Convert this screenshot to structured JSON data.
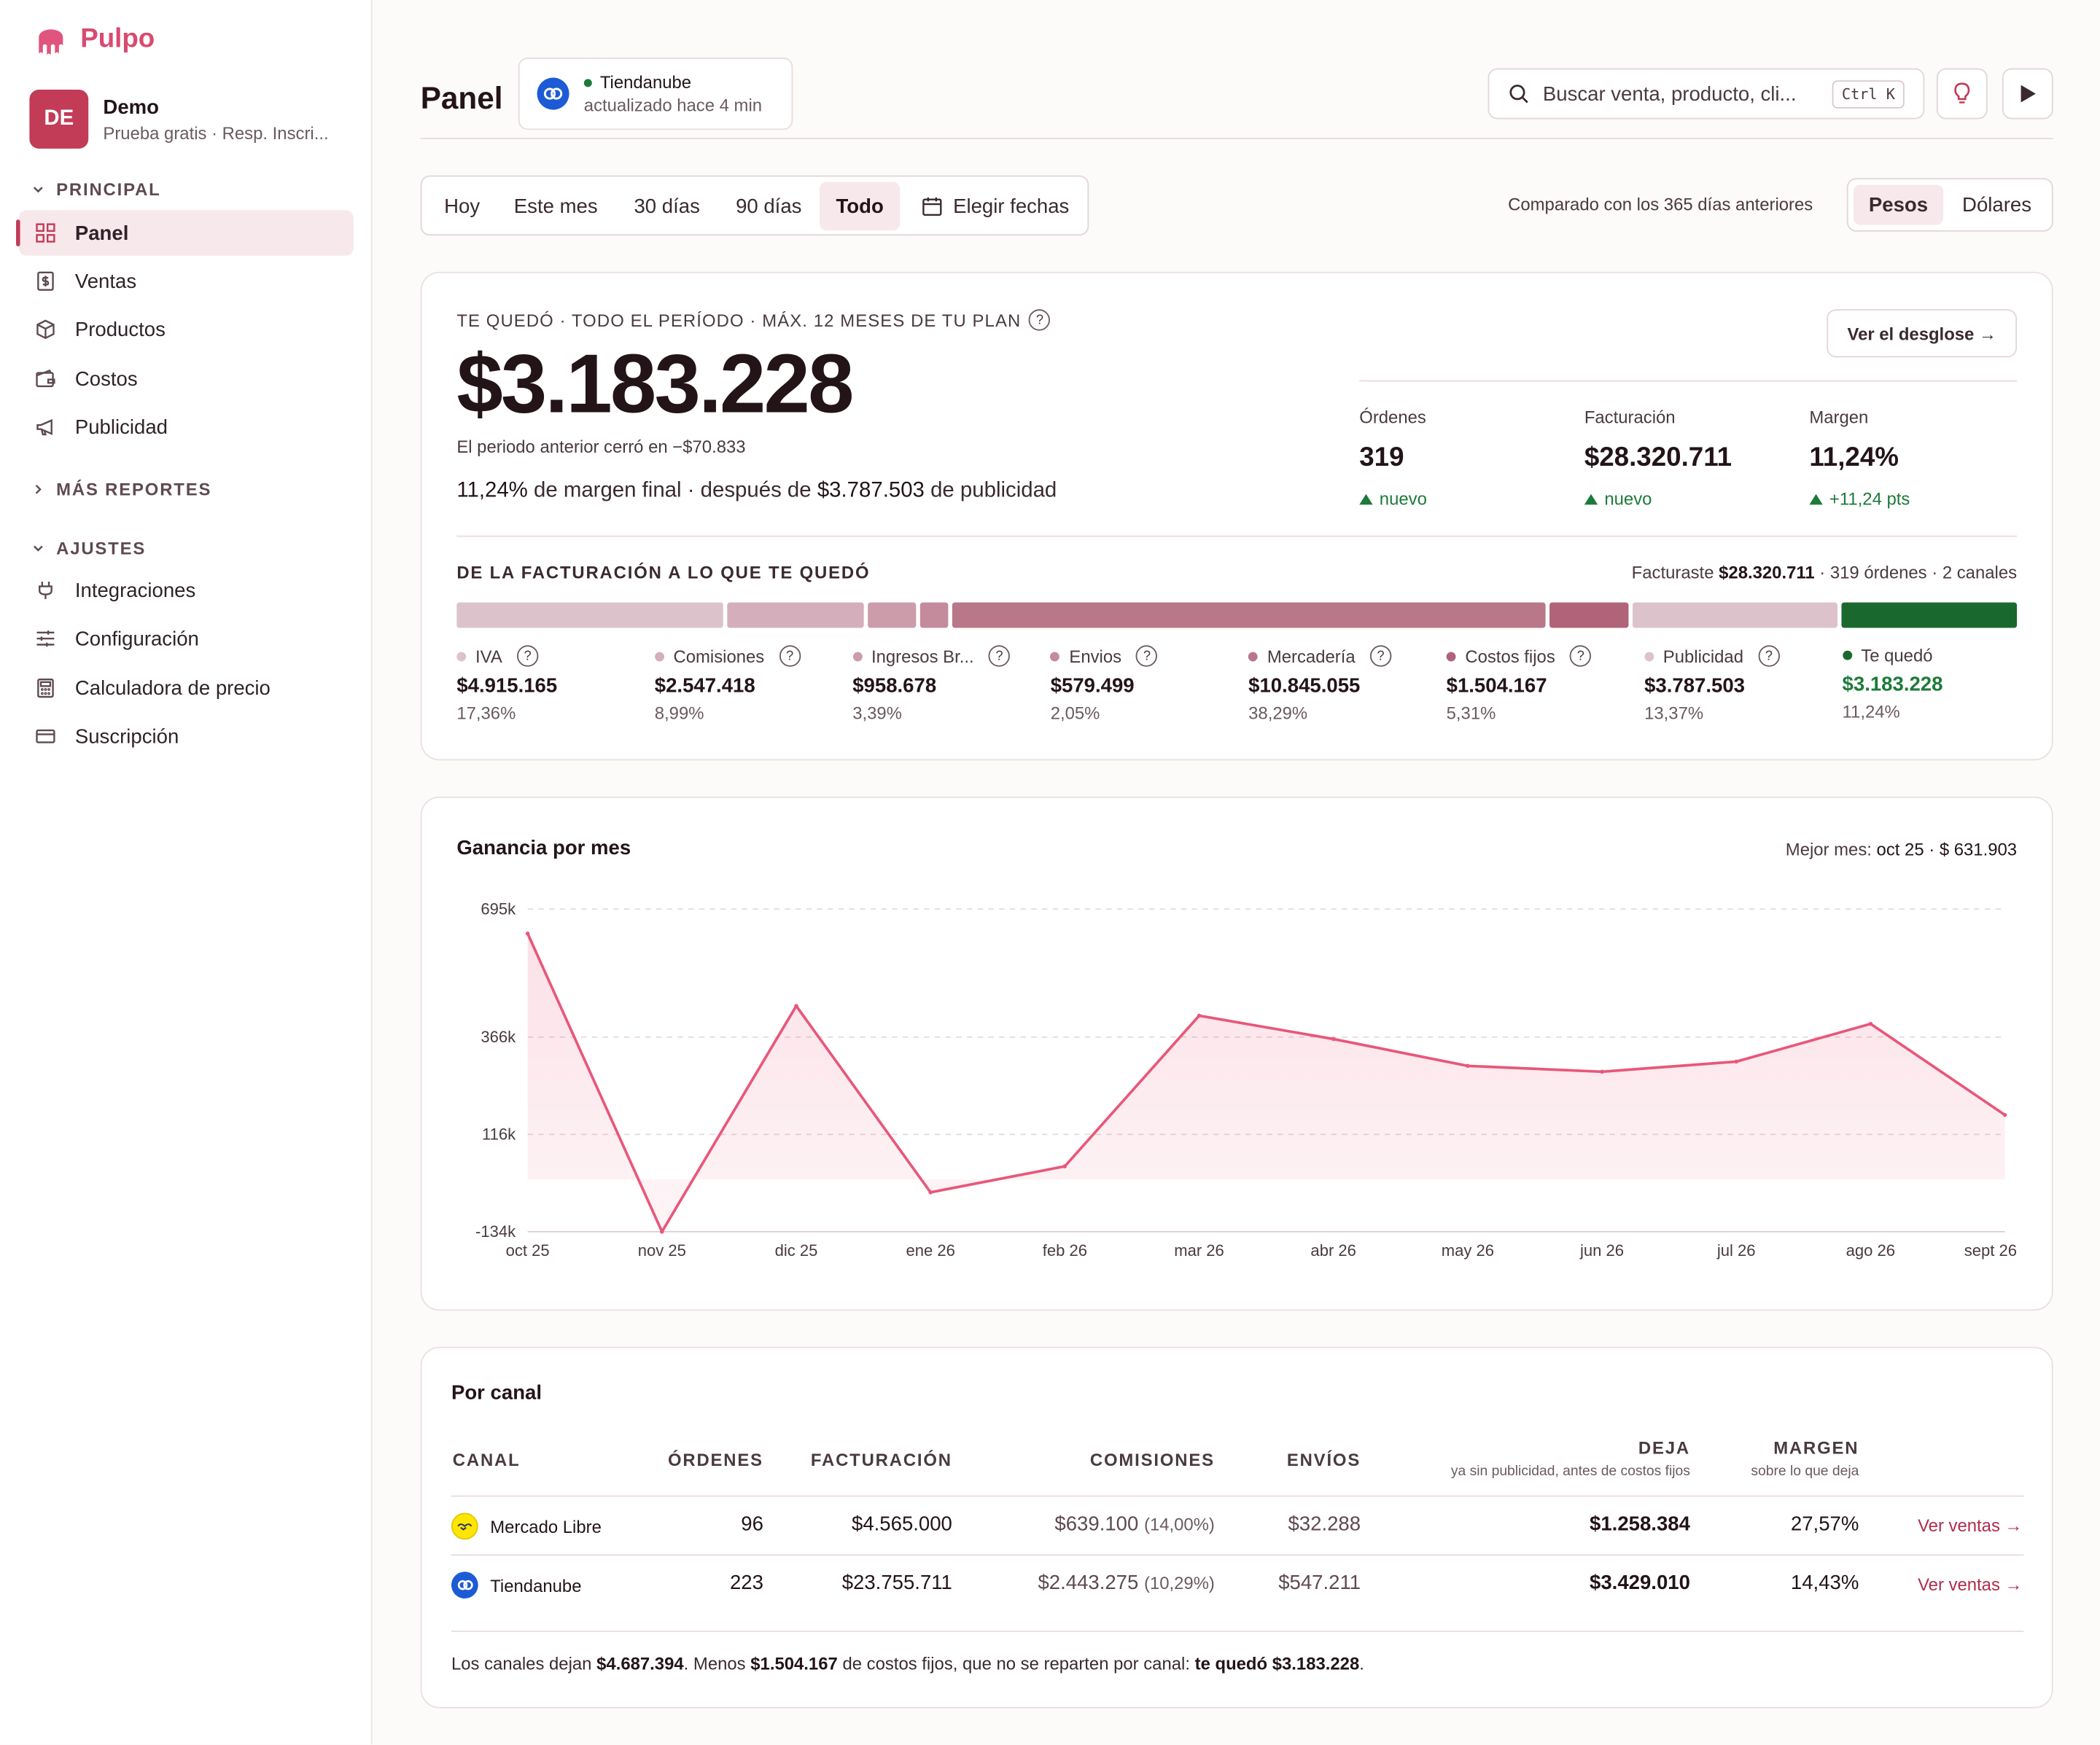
{
  "brand": {
    "name": "Pulpo",
    "color": "#d94a71"
  },
  "account": {
    "initials": "DE",
    "name": "Demo",
    "subtitle": "Prueba gratis · Resp. Inscri..."
  },
  "sidebar": {
    "principal_label": "PRINCIPAL",
    "principal_items": [
      {
        "label": "Panel",
        "icon": "grid-icon",
        "active": true
      },
      {
        "label": "Ventas",
        "icon": "receipt-icon"
      },
      {
        "label": "Productos",
        "icon": "box-icon"
      },
      {
        "label": "Costos",
        "icon": "wallet-icon"
      },
      {
        "label": "Publicidad",
        "icon": "megaphone-icon"
      }
    ],
    "reports_label": "MÁS REPORTES",
    "ajustes_label": "AJUSTES",
    "ajustes_items": [
      {
        "label": "Integraciones",
        "icon": "plug-icon"
      },
      {
        "label": "Configuración",
        "icon": "sliders-icon"
      },
      {
        "label": "Calculadora de precio",
        "icon": "calculator-icon"
      },
      {
        "label": "Suscripción",
        "icon": "card-icon"
      }
    ]
  },
  "header": {
    "title": "Panel",
    "store": {
      "name": "Tiendanube",
      "status": "actualizado hace 4 min"
    },
    "search": {
      "placeholder": "Buscar venta, producto, cli...",
      "shortcut": "Ctrl K"
    }
  },
  "range_tabs": [
    "Hoy",
    "Este mes",
    "30 días",
    "90 días",
    "Todo"
  ],
  "range_active": "Todo",
  "choose_dates": "Elegir fechas",
  "compare_text": "Comparado con los 365 días anteriores",
  "currency_tabs": [
    "Pesos",
    "Dólares"
  ],
  "currency_active": "Pesos",
  "summary": {
    "overline": "TE QUEDÓ · TODO EL PERÍODO · MÁX. 12 MESES DE TU PLAN",
    "total": "$3.183.228",
    "previous": "El periodo anterior cerró en −$70.833",
    "margin_pct": "11,24%",
    "margin_mid": "de margen final · después de",
    "ads_amount": "$3.787.503",
    "margin_tail": "de publicidad",
    "breakdown_button": "Ver el desglose →",
    "kpis": [
      {
        "label": "Órdenes",
        "value": "319",
        "delta": "nuevo"
      },
      {
        "label": "Facturación",
        "value": "$28.320.711",
        "delta": "nuevo"
      },
      {
        "label": "Margen",
        "value": "11,24%",
        "delta": "+11,24 pts"
      }
    ],
    "bar_heading": "DE LA FACTURACIÓN A LO QUE TE QUEDÓ",
    "bar_summary_prefix": "Facturaste",
    "bar_summary_amount": "$28.320.711",
    "bar_summary_suffix": "· 319 órdenes · 2 canales",
    "segments": [
      {
        "label": "IVA",
        "value": "$4.915.165",
        "pct": "17,36%",
        "share": 17.36,
        "color": "#dcc3cb"
      },
      {
        "label": "Comisiones",
        "value": "$2.547.418",
        "pct": "8,99%",
        "share": 8.99,
        "color": "#d4afbb"
      },
      {
        "label": "Ingresos Br...",
        "value": "$958.678",
        "pct": "3,39%",
        "share": 3.39,
        "color": "#cc9cab"
      },
      {
        "label": "Envios",
        "value": "$579.499",
        "pct": "2,05%",
        "share": 2.05,
        "color": "#c48b9c"
      },
      {
        "label": "Mercadería",
        "value": "$10.845.055",
        "pct": "38,29%",
        "share": 38.29,
        "color": "#b9778a"
      },
      {
        "label": "Costos fijos",
        "value": "$1.504.167",
        "pct": "5,31%",
        "share": 5.31,
        "color": "#b06379"
      },
      {
        "label": "Publicidad",
        "value": "$3.787.503",
        "pct": "13,37%",
        "share": 13.37,
        "color": "#dcc3cb"
      },
      {
        "label": "Te quedó",
        "value": "$3.183.228",
        "pct": "11,24%",
        "share": 11.24,
        "color": "#19692f"
      }
    ]
  },
  "chart": {
    "title": "Ganancia por mes",
    "best_label": "Mejor mes:",
    "best_value": "oct 25 · $ 631.903",
    "line_color": "#e8577a"
  },
  "chart_data": {
    "type": "area",
    "title": "Ganancia por mes",
    "x": [
      "oct 25",
      "nov 25",
      "dic 25",
      "ene 26",
      "feb 26",
      "mar 26",
      "abr 26",
      "may 26",
      "jun 26",
      "jul 26",
      "ago 26",
      "sept 26"
    ],
    "values": [
      631903,
      -134000,
      446000,
      -33000,
      34000,
      421000,
      361000,
      292000,
      277000,
      303000,
      400000,
      166000
    ],
    "yticks": [
      -134000,
      116000,
      366000,
      695000
    ],
    "ytick_labels": [
      "-134k",
      "116k",
      "366k",
      "695k"
    ],
    "ylim": [
      -134000,
      695000
    ],
    "grid": true
  },
  "channels": {
    "title": "Por canal",
    "headers": {
      "canal": "CANAL",
      "ordenes": "ÓRDENES",
      "facturacion": "FACTURACIÓN",
      "comisiones": "COMISIONES",
      "envios": "ENVÍOS",
      "deja": "DEJA",
      "deja_sub": "ya sin publicidad, antes de costos fijos",
      "margen": "MARGEN",
      "margen_sub": "sobre lo que deja"
    },
    "rows": [
      {
        "name": "Mercado Libre",
        "orders": "96",
        "billing": "$4.565.000",
        "fees": "$639.100",
        "fees_pct": "(14,00%)",
        "shipping": "$32.288",
        "leaves": "$1.258.384",
        "margin": "27,57%",
        "link": "Ver ventas →"
      },
      {
        "name": "Tiendanube",
        "orders": "223",
        "billing": "$23.755.711",
        "fees": "$2.443.275",
        "fees_pct": "(10,29%)",
        "shipping": "$547.211",
        "leaves": "$3.429.010",
        "margin": "14,43%",
        "link": "Ver ventas →"
      }
    ],
    "footer": {
      "t1": "Los canales dejan",
      "a1": "$4.687.394",
      "t2": ". Menos",
      "a2": "$1.504.167",
      "t3": "de costos fijos, que no se reparten por canal:",
      "a3": "te quedó $3.183.228",
      "t4": "."
    }
  }
}
